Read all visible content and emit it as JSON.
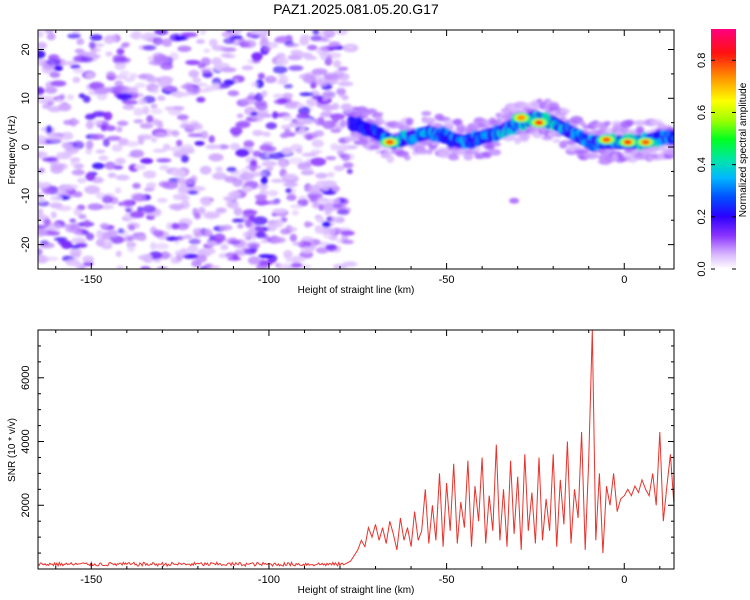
{
  "title": "PAZ1.2025.081.05.20.G17",
  "colors": {
    "snr_line": "#e8322b",
    "axis": "#000000"
  },
  "chart_data": [
    {
      "type": "heatmap",
      "title": "PAZ1.2025.081.05.20.G17",
      "xlabel": "Height of straight line (km)",
      "ylabel": "Frequency (Hz)",
      "xlim": [
        -165,
        14
      ],
      "ylim": [
        -25,
        24
      ],
      "xticks": [
        -150,
        -100,
        -50,
        0
      ],
      "yticks": [
        -20,
        -10,
        0,
        10,
        20
      ],
      "colorbar": {
        "label": "Normalized spectral amplitude",
        "range": [
          0.0,
          0.92
        ],
        "ticks": [
          0.0,
          0.2,
          0.4,
          0.6,
          0.8
        ],
        "colormap": [
          "#ffffff",
          "#d9b8ff",
          "#9a4dff",
          "#6a00ff",
          "#0000ff",
          "#00b4ff",
          "#00e6b0",
          "#00ff00",
          "#c8ff00",
          "#ffff00",
          "#ffb000",
          "#ff4000",
          "#ff0060",
          "#ff0080"
        ]
      },
      "noise_region": {
        "x_range": [
          -165,
          -77
        ],
        "y_range": [
          -25,
          24
        ],
        "level": 0.1
      },
      "signal_ridge": {
        "x": [
          -77,
          -70,
          -65,
          -60,
          -55,
          -50,
          -45,
          -40,
          -35,
          -30,
          -25,
          -20,
          -15,
          -10,
          -5,
          0,
          5,
          10,
          14
        ],
        "freq": [
          5,
          3,
          1,
          2,
          3,
          2,
          1,
          2,
          3,
          5,
          6,
          5,
          3,
          1,
          1,
          1,
          1,
          2,
          2
        ],
        "amplitude": [
          0.25,
          0.4,
          0.8,
          0.55,
          0.6,
          0.5,
          0.55,
          0.5,
          0.6,
          0.65,
          0.85,
          0.75,
          0.6,
          0.55,
          0.6,
          0.85,
          0.75,
          0.65,
          0.5
        ],
        "peaks": [
          {
            "x": -66,
            "freq": 1,
            "amplitude": 0.85
          },
          {
            "x": -29,
            "freq": 6,
            "amplitude": 0.8
          },
          {
            "x": -24,
            "freq": 5,
            "amplitude": 0.88
          },
          {
            "x": -5,
            "freq": 1.5,
            "amplitude": 0.85
          },
          {
            "x": 1,
            "freq": 1,
            "amplitude": 0.88
          },
          {
            "x": 6,
            "freq": 1,
            "amplitude": 0.85
          }
        ]
      }
    },
    {
      "type": "line",
      "xlabel": "Height of straight line (km)",
      "ylabel": "SNR (10 * v/v)",
      "xlim": [
        -165,
        14
      ],
      "ylim": [
        0,
        7500
      ],
      "xticks": [
        -150,
        -100,
        -50,
        0
      ],
      "yticks": [
        2000,
        4000,
        6000
      ],
      "series": [
        {
          "x": [
            -165,
            -140,
            -120,
            -100,
            -90,
            -79,
            -77,
            -75,
            -74,
            -73,
            -72,
            -71,
            -70,
            -69,
            -68,
            -67,
            -66,
            -65,
            -64,
            -63,
            -62,
            -61,
            -60,
            -59,
            -58,
            -57,
            -56,
            -55,
            -54,
            -53,
            -52,
            -51,
            -50,
            -49,
            -48,
            -47,
            -46,
            -45,
            -44,
            -43,
            -42,
            -41,
            -40,
            -39,
            -38,
            -37,
            -36,
            -35,
            -34,
            -33,
            -32,
            -31,
            -30,
            -29,
            -28,
            -27,
            -26,
            -25,
            -24,
            -23,
            -22,
            -21,
            -20,
            -19,
            -18,
            -17,
            -16,
            -15,
            -14,
            -13,
            -12,
            -11,
            -10,
            -9,
            -8,
            -7,
            -6,
            -5,
            -4,
            -3,
            -2,
            -1,
            0,
            1,
            2,
            3,
            4,
            5,
            6,
            7,
            8,
            9,
            10,
            11,
            12,
            13,
            14
          ],
          "values": [
            150,
            150,
            150,
            150,
            150,
            150,
            250,
            600,
            900,
            700,
            1300,
            1000,
            1400,
            900,
            1300,
            800,
            1500,
            1100,
            600,
            1600,
            900,
            1300,
            700,
            1800,
            900,
            1200,
            2500,
            800,
            2000,
            900,
            3000,
            700,
            2700,
            1200,
            3300,
            800,
            2100,
            1300,
            3400,
            700,
            2600,
            1500,
            3500,
            800,
            2300,
            1200,
            3900,
            900,
            2500,
            700,
            3400,
            1100,
            2900,
            600,
            3600,
            1200,
            2400,
            800,
            3500,
            900,
            2200,
            1200,
            3600,
            700,
            2800,
            1400,
            4000,
            800,
            2500,
            1600,
            4300,
            600,
            3400,
            7500,
            900,
            3000,
            500,
            2600,
            2000,
            3000,
            1800,
            2200,
            2300,
            2500,
            2300,
            2600,
            2400,
            2800,
            2500,
            2300,
            3000,
            2000,
            4300,
            1500,
            2600,
            3600,
            2000
          ]
        }
      ]
    }
  ]
}
